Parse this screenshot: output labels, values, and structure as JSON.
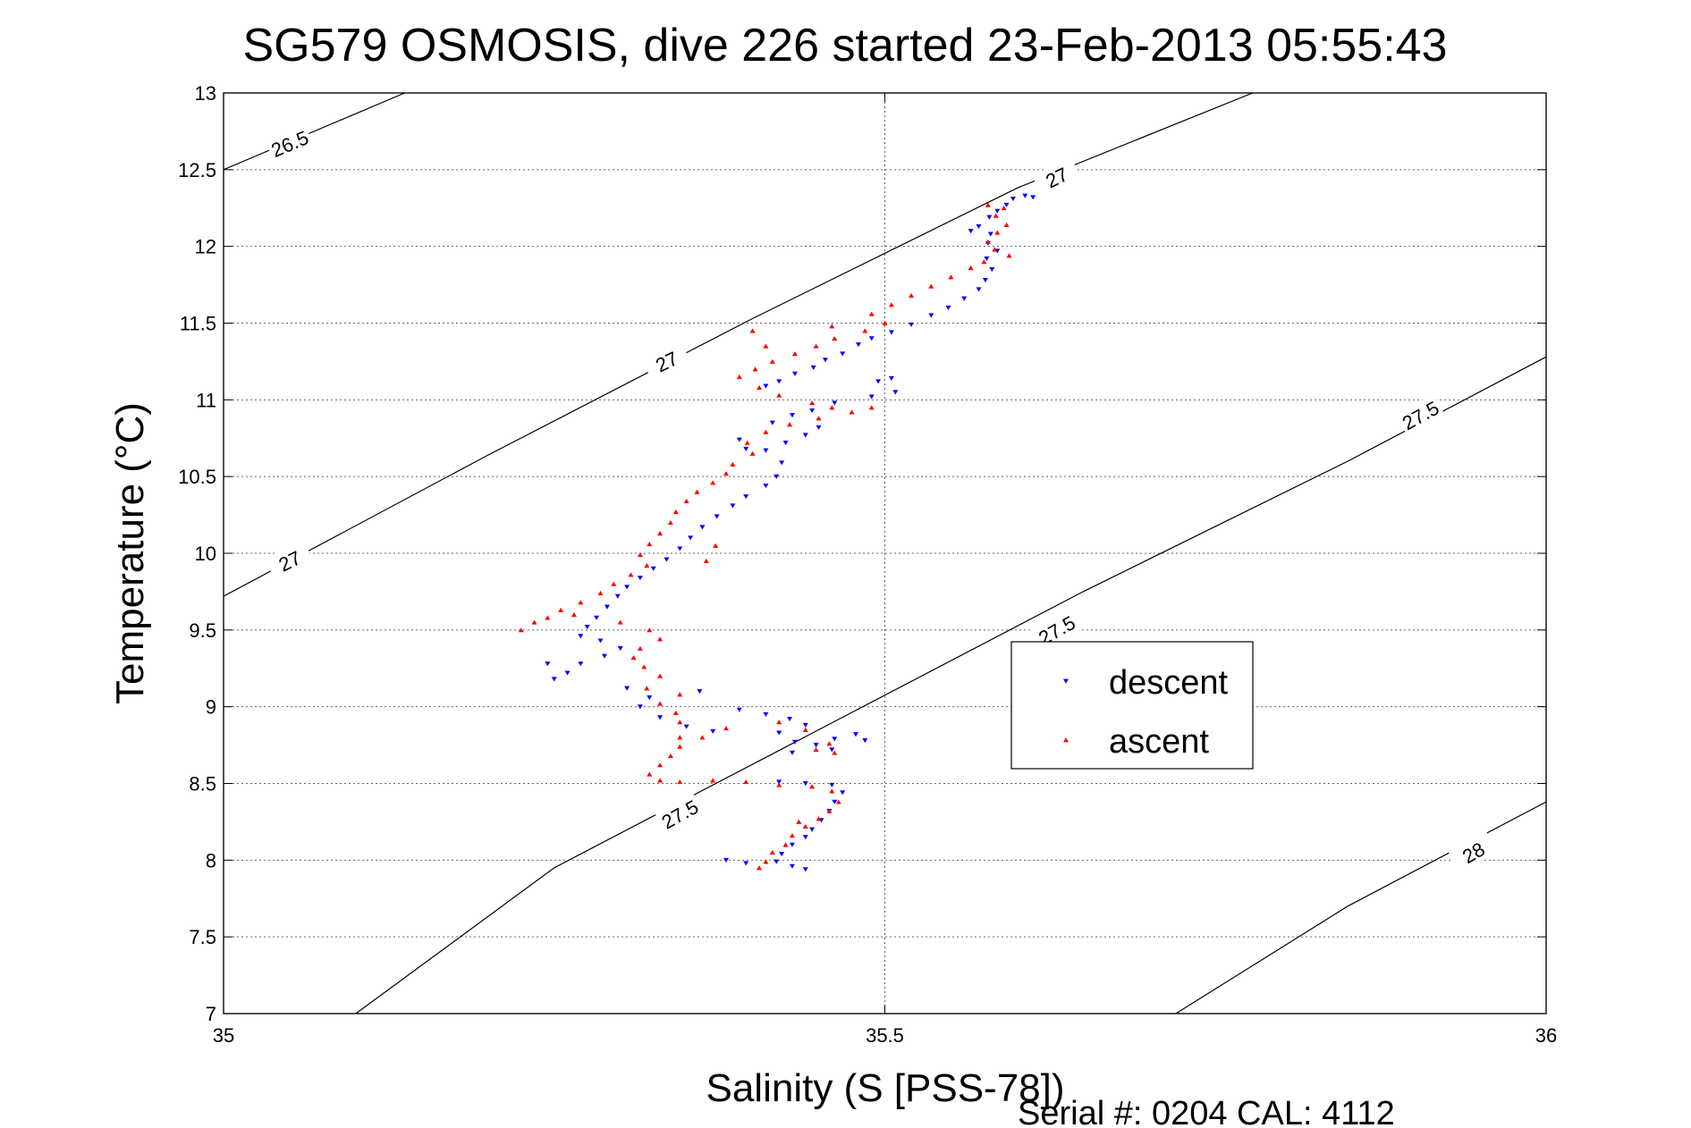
{
  "chart_data": {
    "type": "scatter",
    "title": "SG579 OSMOSIS, dive 226 started 23-Feb-2013 05:55:43",
    "xlabel": "Salinity (S [PSS-78])",
    "ylabel": "Temperature (°C)",
    "footer": "Serial #: 0204  CAL: 4112",
    "xlim": [
      35,
      36
    ],
    "ylim": [
      7,
      13
    ],
    "x_ticks": [
      "35",
      "35.5",
      "36"
    ],
    "y_ticks": [
      "7",
      "7.5",
      "8",
      "8.5",
      "9",
      "9.5",
      "10",
      "10.5",
      "11",
      "11.5",
      "12",
      "12.5",
      "13"
    ],
    "grid": true,
    "legend": {
      "position": "right-center",
      "entries": [
        "descent",
        "ascent"
      ]
    },
    "density_contours": [
      {
        "label": "26.5",
        "points": [
          [
            35.0,
            12.5
          ],
          [
            35.137,
            13.0
          ]
        ],
        "label_at": [
          [
            35.05,
            12.67
          ]
        ]
      },
      {
        "label": "27",
        "points": [
          [
            35.0,
            9.72
          ],
          [
            35.2,
            10.64
          ],
          [
            35.4,
            11.53
          ],
          [
            35.6,
            12.38
          ],
          [
            35.778,
            13.0
          ]
        ],
        "label_at": [
          [
            35.05,
            9.95
          ],
          [
            35.335,
            11.25
          ],
          [
            35.63,
            12.45
          ]
        ]
      },
      {
        "label": "27.5",
        "points": [
          [
            35.1,
            7.0
          ],
          [
            35.25,
            7.95
          ],
          [
            35.45,
            8.85
          ],
          [
            35.65,
            9.75
          ],
          [
            35.85,
            10.6
          ],
          [
            36.0,
            11.28
          ]
        ],
        "label_at": [
          [
            35.345,
            8.3
          ],
          [
            35.63,
            9.5
          ],
          [
            35.905,
            10.9
          ]
        ]
      },
      {
        "label": "28",
        "points": [
          [
            35.72,
            7.0
          ],
          [
            35.85,
            7.7
          ],
          [
            36.0,
            8.38
          ]
        ],
        "label_at": [
          [
            35.945,
            8.05
          ]
        ]
      }
    ],
    "series": [
      {
        "name": "descent",
        "color": "#0000ff",
        "marker": "triangle-down",
        "points": [
          [
            35.597,
            12.31
          ],
          [
            35.606,
            12.33
          ],
          [
            35.612,
            12.32
          ],
          [
            35.592,
            12.27
          ],
          [
            35.585,
            12.23
          ],
          [
            35.579,
            12.19
          ],
          [
            35.571,
            12.13
          ],
          [
            35.565,
            12.1
          ],
          [
            35.58,
            12.08
          ],
          [
            35.578,
            12.02
          ],
          [
            35.585,
            11.97
          ],
          [
            35.577,
            11.92
          ],
          [
            35.581,
            11.85
          ],
          [
            35.576,
            11.78
          ],
          [
            35.571,
            11.72
          ],
          [
            35.56,
            11.66
          ],
          [
            35.548,
            11.6
          ],
          [
            35.535,
            11.55
          ],
          [
            35.52,
            11.49
          ],
          [
            35.505,
            11.44
          ],
          [
            35.49,
            11.4
          ],
          [
            35.48,
            11.36
          ],
          [
            35.468,
            11.3
          ],
          [
            35.455,
            11.26
          ],
          [
            35.446,
            11.21
          ],
          [
            35.432,
            11.17
          ],
          [
            35.42,
            11.12
          ],
          [
            35.41,
            11.09
          ],
          [
            35.495,
            11.12
          ],
          [
            35.508,
            11.05
          ],
          [
            35.49,
            11.02
          ],
          [
            35.462,
            10.98
          ],
          [
            35.445,
            10.93
          ],
          [
            35.43,
            10.9
          ],
          [
            35.415,
            10.85
          ],
          [
            35.45,
            10.82
          ],
          [
            35.44,
            10.77
          ],
          [
            35.425,
            10.72
          ],
          [
            35.41,
            10.67
          ],
          [
            35.39,
            10.74
          ],
          [
            35.395,
            10.68
          ],
          [
            35.422,
            10.59
          ],
          [
            35.418,
            10.5
          ],
          [
            35.41,
            10.44
          ],
          [
            35.395,
            10.37
          ],
          [
            35.385,
            10.31
          ],
          [
            35.373,
            10.24
          ],
          [
            35.362,
            10.17
          ],
          [
            35.353,
            10.1
          ],
          [
            35.345,
            10.03
          ],
          [
            35.335,
            9.96
          ],
          [
            35.325,
            9.9
          ],
          [
            35.315,
            9.84
          ],
          [
            35.305,
            9.78
          ],
          [
            35.298,
            9.72
          ],
          [
            35.29,
            9.65
          ],
          [
            35.282,
            9.58
          ],
          [
            35.275,
            9.52
          ],
          [
            35.27,
            9.46
          ],
          [
            35.285,
            9.43
          ],
          [
            35.3,
            9.38
          ],
          [
            35.288,
            9.33
          ],
          [
            35.27,
            9.28
          ],
          [
            35.26,
            9.22
          ],
          [
            35.25,
            9.18
          ],
          [
            35.305,
            9.12
          ],
          [
            35.322,
            9.06
          ],
          [
            35.315,
            9.0
          ],
          [
            35.33,
            8.93
          ],
          [
            35.35,
            8.87
          ],
          [
            35.37,
            8.84
          ],
          [
            35.39,
            8.98
          ],
          [
            35.41,
            8.95
          ],
          [
            35.428,
            8.92
          ],
          [
            35.44,
            8.88
          ],
          [
            35.42,
            8.83
          ],
          [
            35.432,
            8.77
          ],
          [
            35.448,
            8.75
          ],
          [
            35.462,
            8.79
          ],
          [
            35.478,
            8.82
          ],
          [
            35.485,
            8.78
          ],
          [
            35.46,
            8.72
          ],
          [
            35.43,
            8.7
          ],
          [
            35.42,
            8.51
          ],
          [
            35.44,
            8.5
          ],
          [
            35.46,
            8.49
          ],
          [
            35.468,
            8.44
          ],
          [
            35.462,
            8.38
          ],
          [
            35.458,
            8.32
          ],
          [
            35.452,
            8.26
          ],
          [
            35.445,
            8.2
          ],
          [
            35.44,
            8.15
          ],
          [
            35.43,
            8.1
          ],
          [
            35.422,
            8.04
          ],
          [
            35.418,
            7.99
          ],
          [
            35.43,
            7.96
          ],
          [
            35.44,
            7.94
          ],
          [
            35.395,
            7.98
          ],
          [
            35.38,
            8.0
          ],
          [
            35.245,
            9.28
          ],
          [
            35.36,
            9.1
          ],
          [
            35.505,
            11.14
          ]
        ]
      },
      {
        "name": "ascent",
        "color": "#ff0000",
        "marker": "triangle-up",
        "points": [
          [
            35.578,
            12.27
          ],
          [
            35.59,
            12.25
          ],
          [
            35.584,
            12.2
          ],
          [
            35.592,
            12.14
          ],
          [
            35.585,
            12.09
          ],
          [
            35.578,
            12.03
          ],
          [
            35.583,
            11.98
          ],
          [
            35.594,
            11.94
          ],
          [
            35.575,
            11.9
          ],
          [
            35.565,
            11.86
          ],
          [
            35.55,
            11.8
          ],
          [
            35.535,
            11.74
          ],
          [
            35.52,
            11.68
          ],
          [
            35.505,
            11.62
          ],
          [
            35.49,
            11.56
          ],
          [
            35.5,
            11.5
          ],
          [
            35.485,
            11.45
          ],
          [
            35.462,
            11.4
          ],
          [
            35.448,
            11.35
          ],
          [
            35.432,
            11.3
          ],
          [
            35.415,
            11.25
          ],
          [
            35.402,
            11.2
          ],
          [
            35.39,
            11.15
          ],
          [
            35.405,
            11.08
          ],
          [
            35.42,
            11.03
          ],
          [
            35.445,
            10.98
          ],
          [
            35.46,
            10.95
          ],
          [
            35.475,
            10.92
          ],
          [
            35.49,
            10.95
          ],
          [
            35.45,
            10.88
          ],
          [
            35.428,
            10.84
          ],
          [
            35.41,
            10.79
          ],
          [
            35.396,
            10.72
          ],
          [
            35.4,
            10.65
          ],
          [
            35.385,
            10.58
          ],
          [
            35.38,
            10.52
          ],
          [
            35.37,
            10.46
          ],
          [
            35.358,
            10.4
          ],
          [
            35.35,
            10.34
          ],
          [
            35.342,
            10.27
          ],
          [
            35.338,
            10.2
          ],
          [
            35.33,
            10.13
          ],
          [
            35.322,
            10.06
          ],
          [
            35.315,
            9.99
          ],
          [
            35.32,
            9.92
          ],
          [
            35.308,
            9.86
          ],
          [
            35.295,
            9.8
          ],
          [
            35.285,
            9.74
          ],
          [
            35.27,
            9.68
          ],
          [
            35.255,
            9.63
          ],
          [
            35.245,
            9.58
          ],
          [
            35.235,
            9.55
          ],
          [
            35.225,
            9.5
          ],
          [
            35.265,
            9.6
          ],
          [
            35.3,
            9.55
          ],
          [
            35.322,
            9.5
          ],
          [
            35.33,
            9.44
          ],
          [
            35.315,
            9.38
          ],
          [
            35.31,
            9.32
          ],
          [
            35.318,
            9.26
          ],
          [
            35.33,
            9.2
          ],
          [
            35.32,
            9.12
          ],
          [
            35.345,
            9.08
          ],
          [
            35.33,
            9.02
          ],
          [
            35.342,
            8.96
          ],
          [
            35.345,
            8.9
          ],
          [
            35.345,
            8.8
          ],
          [
            35.345,
            8.74
          ],
          [
            35.338,
            8.68
          ],
          [
            35.33,
            8.62
          ],
          [
            35.322,
            8.56
          ],
          [
            35.33,
            8.52
          ],
          [
            35.345,
            8.51
          ],
          [
            35.37,
            8.52
          ],
          [
            35.395,
            8.51
          ],
          [
            35.42,
            8.49
          ],
          [
            35.445,
            8.48
          ],
          [
            35.46,
            8.45
          ],
          [
            35.465,
            8.38
          ],
          [
            35.458,
            8.32
          ],
          [
            35.45,
            8.27
          ],
          [
            35.44,
            8.22
          ],
          [
            35.43,
            8.16
          ],
          [
            35.425,
            8.1
          ],
          [
            35.415,
            8.05
          ],
          [
            35.41,
            7.99
          ],
          [
            35.405,
            7.95
          ],
          [
            35.435,
            8.25
          ],
          [
            35.448,
            8.72
          ],
          [
            35.458,
            8.76
          ],
          [
            35.462,
            8.7
          ],
          [
            35.44,
            8.85
          ],
          [
            35.42,
            8.9
          ],
          [
            35.38,
            8.86
          ],
          [
            35.362,
            8.8
          ],
          [
            35.4,
            11.45
          ],
          [
            35.41,
            11.35
          ],
          [
            35.46,
            11.48
          ],
          [
            35.372,
            10.05
          ],
          [
            35.365,
            9.95
          ]
        ]
      }
    ]
  }
}
